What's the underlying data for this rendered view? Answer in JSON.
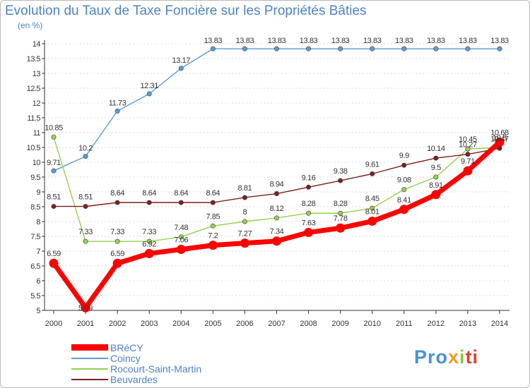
{
  "header": {
    "title": "Evolution du Taux de Taxe Foncière sur les Propriétés Bâties",
    "unit": "(en %)"
  },
  "logo": {
    "text": "Proxiti",
    "parts": [
      "Pro",
      "x",
      "i",
      "ti"
    ]
  },
  "colors": {
    "brecy": "#ff0000",
    "coincy": "#5b9bd5",
    "rocourt": "#92d050",
    "beuvardes": "#7b1f1f",
    "axis": "#333333",
    "grid": "#dddddd",
    "title": "#4f82c4"
  },
  "chart_data": {
    "type": "line",
    "title": "Evolution du Taux de Taxe Foncière sur les Propriétés Bâties",
    "ylabel": "(en %)",
    "xlabel": "",
    "x": [
      "2000",
      "2001",
      "2002",
      "2003",
      "2004",
      "2005",
      "2006",
      "2007",
      "2008",
      "2009",
      "2010",
      "2011",
      "2012",
      "2013",
      "2014"
    ],
    "ylim": [
      5,
      14
    ],
    "yticks": [
      "5",
      "5.5",
      "6",
      "6.5",
      "7",
      "7.5",
      "8",
      "8.5",
      "9",
      "9.5",
      "10",
      "10.5",
      "11",
      "11.5",
      "12",
      "12.5",
      "13",
      "13.5",
      "14"
    ],
    "grid": true,
    "legend_position": "bottom-left",
    "series": [
      {
        "name": "BRéCY",
        "key": "brecy",
        "values": [
          6.59,
          5.09,
          6.59,
          6.92,
          7.06,
          7.2,
          7.27,
          7.34,
          7.63,
          7.78,
          8.01,
          8.41,
          8.91,
          9.71,
          10.68
        ],
        "labels": [
          "6.59",
          "5.09",
          "6.59",
          "6.92",
          "7.06",
          "7.2",
          "7.27",
          "7.34",
          "7.63",
          "7.78",
          "8.01",
          "8.41",
          "8.91",
          "9.71",
          "10.68"
        ]
      },
      {
        "name": "Coincy",
        "key": "coincy",
        "values": [
          9.71,
          10.2,
          11.73,
          12.31,
          13.17,
          13.83,
          13.83,
          13.83,
          13.83,
          13.83,
          13.83,
          13.83,
          13.83,
          13.83,
          13.83
        ],
        "labels": [
          "9.71",
          "10.2",
          "11.73",
          "12.31",
          "13.17",
          "13.83",
          "13.83",
          "13.83",
          "13.83",
          "13.83",
          "13.83",
          "13.83",
          "13.83",
          "13.83",
          "13.83"
        ]
      },
      {
        "name": "Rocourt-Saint-Martin",
        "key": "rocourt",
        "values": [
          10.85,
          7.33,
          7.33,
          7.33,
          7.48,
          7.85,
          8,
          8.12,
          8.28,
          8.28,
          8.45,
          9.08,
          9.5,
          10.45,
          10.5
        ],
        "labels": [
          "10.85",
          "7.33",
          "7.33",
          "7.33",
          "7.48",
          "7.85",
          "8",
          "8.12",
          "8.28",
          "8.28",
          "8.45",
          "9.08",
          "9.5",
          "10.45",
          "10.5"
        ]
      },
      {
        "name": "Beuvardes",
        "key": "beuvardes",
        "values": [
          8.51,
          8.51,
          8.64,
          8.64,
          8.64,
          8.64,
          8.81,
          8.94,
          9.16,
          9.38,
          9.61,
          9.9,
          10.14,
          10.27,
          10.47
        ],
        "labels": [
          "8.51",
          "8.51",
          "8.64",
          "8.64",
          "8.64",
          "8.64",
          "8.81",
          "8.94",
          "9.16",
          "9.38",
          "9.61",
          "9.9",
          "10.14",
          "10.27",
          "10.47"
        ]
      }
    ]
  }
}
